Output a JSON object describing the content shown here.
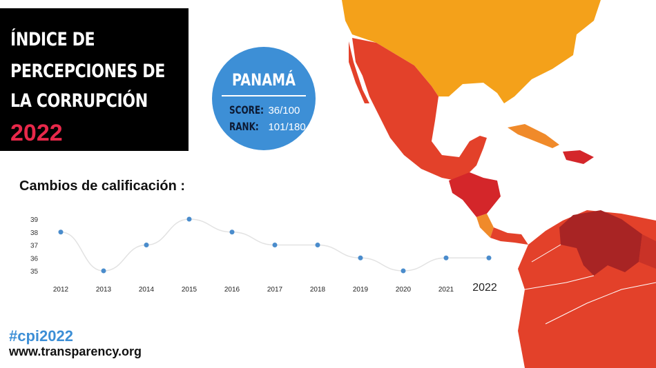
{
  "title": {
    "line1": "ÍNDICE  DE",
    "line2": "PERCEPCIONES DE",
    "line3": "LA CORRUPCIÓN",
    "year": "2022"
  },
  "country": {
    "name": "PANAMÁ",
    "score_label": "SCORE:",
    "score": "36/100",
    "rank_label": "RANK:",
    "rank": "101/180"
  },
  "subtitle": "Cambios de calificación :",
  "footer": {
    "hashtag": "#cpi2022",
    "url": "www.transparency.org"
  },
  "colors": {
    "accent": "#e8284a",
    "circle": "#3d8fd6",
    "point": "#4a8ccc",
    "usa": "#f4a11a",
    "mexico": "#e3412a",
    "venezuela": "#a82424"
  },
  "chart_data": {
    "type": "line",
    "title": "Cambios de calificación :",
    "categories": [
      "2012",
      "2013",
      "2014",
      "2015",
      "2016",
      "2017",
      "2018",
      "2019",
      "2020",
      "2021",
      "2022"
    ],
    "values": [
      38,
      35,
      37,
      39,
      38,
      37,
      37,
      36,
      35,
      36,
      36
    ],
    "yticks": [
      "35",
      "36",
      "37",
      "38",
      "39"
    ],
    "ylim": [
      35,
      39
    ],
    "xlabel": "",
    "ylabel": "",
    "grid": false
  }
}
